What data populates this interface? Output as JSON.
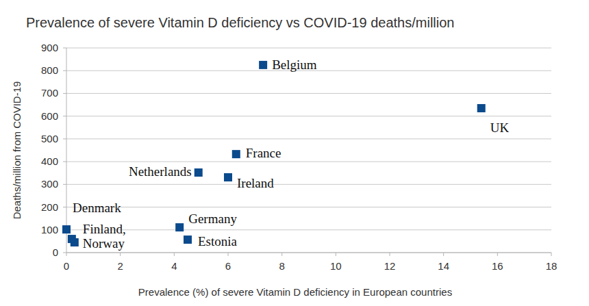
{
  "chart_data": {
    "type": "scatter",
    "title": "Prevalence of severe Vitamin D deficiency vs COVID-19 deaths/million",
    "x_label": "Prevalence (%) of severe Vitamin D deficiency in European countries",
    "y_label": "Deaths/million from COVID-19",
    "labels": [
      "Belgium",
      "UK",
      "France",
      "Netherlands",
      "Ireland",
      "Denmark",
      "Finland,",
      "Norway",
      "Germany",
      "Estonia"
    ],
    "x": [
      7.3,
      15.4,
      6.3,
      4.9,
      6.0,
      0,
      0.2,
      0.3,
      4.2,
      4.5
    ],
    "values": [
      825,
      635,
      433,
      352,
      331,
      102,
      60,
      45,
      111,
      57
    ],
    "color": "#0b4a8c",
    "marker": "square",
    "xlim": [
      0,
      18
    ],
    "xticks": [
      0,
      2,
      4,
      6,
      8,
      10,
      12,
      14,
      16,
      18
    ],
    "ylim": [
      0,
      900
    ],
    "yticks": [
      0,
      100,
      200,
      300,
      400,
      500,
      600,
      700,
      800,
      900
    ],
    "grid": true
  }
}
